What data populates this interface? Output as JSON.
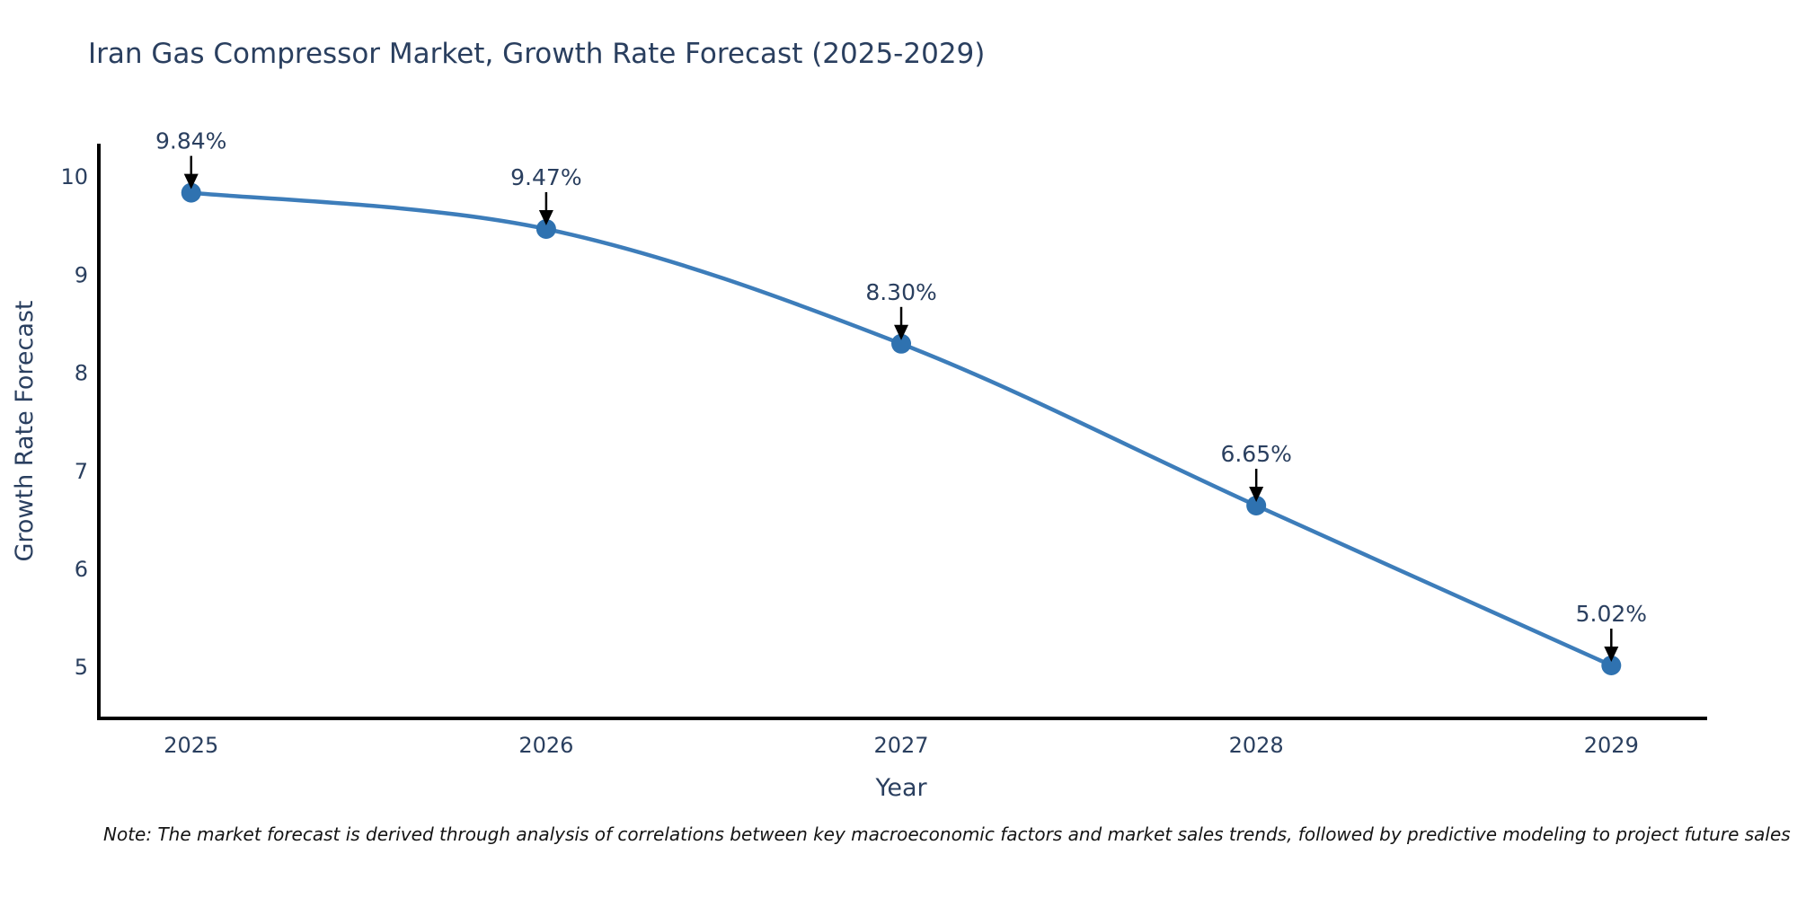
{
  "chart_data": {
    "type": "line",
    "title": "Iran Gas Compressor Market, Growth Rate Forecast (2025-2029)",
    "xlabel": "Year",
    "ylabel": "Growth Rate Forecast",
    "x": [
      2025,
      2026,
      2027,
      2028,
      2029
    ],
    "series": [
      {
        "name": "Growth Rate Forecast",
        "values": [
          9.84,
          9.47,
          8.3,
          6.65,
          5.02
        ],
        "point_labels": [
          "9.84%",
          "9.47%",
          "8.30%",
          "6.65%",
          "5.02%"
        ]
      }
    ],
    "x_ticks": [
      "2025",
      "2026",
      "2027",
      "2028",
      "2029"
    ],
    "y_ticks": [
      5,
      6,
      7,
      8,
      9,
      10
    ],
    "xlim": [
      2024.74,
      2029.27
    ],
    "ylim": [
      4.48,
      10.34
    ],
    "grid": false,
    "legend": false,
    "line_shape": "spline",
    "colors": {
      "line": "#3d7dba",
      "marker": "#2f72b0",
      "axis": "#000000",
      "text": "#2a3f5f",
      "annotation_text": "#2a3f5f",
      "annotation_arrow": "#000000",
      "background": "#ffffff"
    }
  },
  "note": "Note: The market forecast is derived through analysis of correlations between key macroeconomic factors and market sales trends, followed by predictive modeling to project future sales"
}
